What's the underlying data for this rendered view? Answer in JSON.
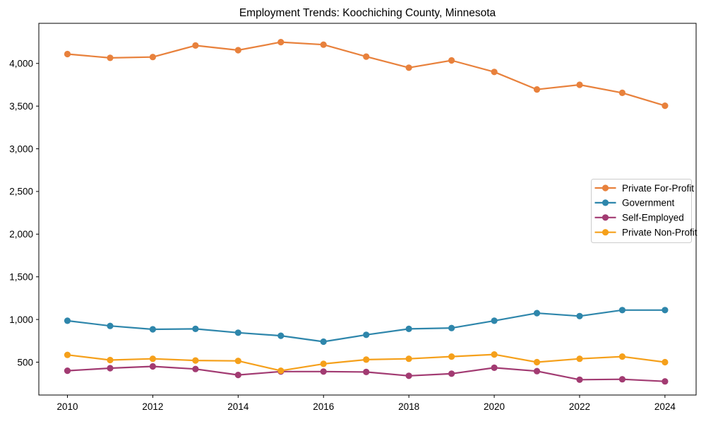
{
  "chart_data": {
    "type": "line",
    "title": "Employment Trends: Koochiching County, Minnesota",
    "xlabel": "",
    "ylabel": "",
    "x": [
      2010,
      2011,
      2012,
      2013,
      2014,
      2015,
      2016,
      2017,
      2018,
      2019,
      2020,
      2021,
      2022,
      2023,
      2024
    ],
    "series": [
      {
        "name": "Private For-Profit",
        "color": "#E8813C",
        "values": [
          4110,
          4065,
          4075,
          4210,
          4155,
          4250,
          4220,
          4080,
          3950,
          4035,
          3900,
          3695,
          3750,
          3655,
          3505
        ]
      },
      {
        "name": "Government",
        "color": "#2E86AB",
        "values": [
          985,
          925,
          885,
          890,
          845,
          810,
          740,
          820,
          890,
          900,
          985,
          1075,
          1040,
          1110,
          1110
        ]
      },
      {
        "name": "Self-Employed",
        "color": "#A23B72",
        "values": [
          400,
          430,
          450,
          420,
          350,
          390,
          390,
          385,
          340,
          365,
          435,
          395,
          295,
          300,
          275
        ]
      },
      {
        "name": "Private Non-Profit",
        "color": "#F5A01B",
        "values": [
          585,
          525,
          540,
          520,
          515,
          400,
          480,
          530,
          540,
          565,
          590,
          500,
          540,
          565,
          500
        ]
      }
    ],
    "xticks": {
      "values": [
        2010,
        2012,
        2014,
        2016,
        2018,
        2020,
        2022,
        2024
      ],
      "labels": [
        "2010",
        "2012",
        "2014",
        "2016",
        "2018",
        "2020",
        "2022",
        "2024"
      ]
    },
    "yticks": {
      "values": [
        500,
        1000,
        1500,
        2000,
        2500,
        3000,
        3500,
        4000
      ],
      "labels": [
        "500",
        "1,000",
        "1,500",
        "2,000",
        "2,500",
        "3,000",
        "3,500",
        "4,000"
      ]
    },
    "xlim": [
      2009.33,
      2024.73
    ],
    "ylim": [
      115,
      4470
    ],
    "grid": false,
    "legend_position": "right-middle",
    "marker": "circle",
    "axis_color": "#000000",
    "legend_border_color": "#cccccc",
    "background_color": "#ffffff"
  }
}
